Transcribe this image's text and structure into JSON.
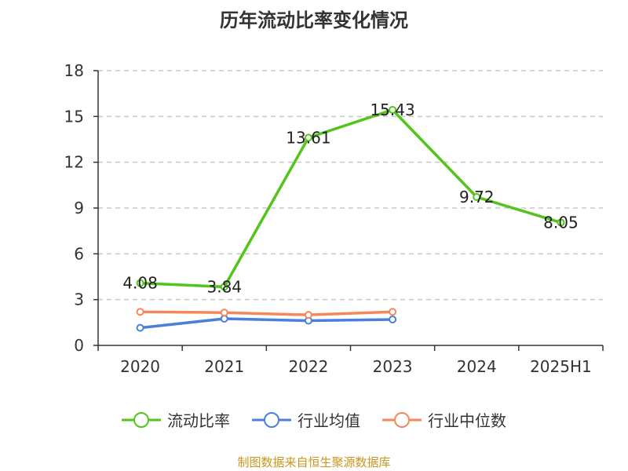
{
  "title": "历年流动比率变化情况",
  "source_note": "制图数据来自恒生聚源数据库",
  "colors": {
    "current_ratio": "#52c41a",
    "industry_mean": "#4a7fdc",
    "industry_median": "#f5885a",
    "grid": "#c8c8c8",
    "axis": "#333333"
  },
  "chart_data": {
    "type": "line",
    "title": "历年流动比率变化情况",
    "xlabel": "",
    "ylabel": "",
    "categories": [
      "2020",
      "2021",
      "2022",
      "2023",
      "2024",
      "2025H1"
    ],
    "ylim": [
      0,
      18
    ],
    "yticks": [
      0,
      3,
      6,
      9,
      12,
      15,
      18
    ],
    "grid": true,
    "legend_position": "bottom",
    "series": [
      {
        "name": "流动比率",
        "key": "current_ratio",
        "values": [
          4.08,
          3.84,
          13.61,
          15.43,
          9.72,
          8.05
        ],
        "labels": [
          "4.08",
          "3.84",
          "13.61",
          "15.43",
          "9.72",
          "8.05"
        ]
      },
      {
        "name": "行业均值",
        "key": "industry_mean",
        "values": [
          1.15,
          1.75,
          1.62,
          1.7,
          null,
          null
        ]
      },
      {
        "name": "行业中位数",
        "key": "industry_median",
        "values": [
          2.2,
          2.15,
          2.0,
          2.2,
          null,
          null
        ]
      }
    ]
  }
}
